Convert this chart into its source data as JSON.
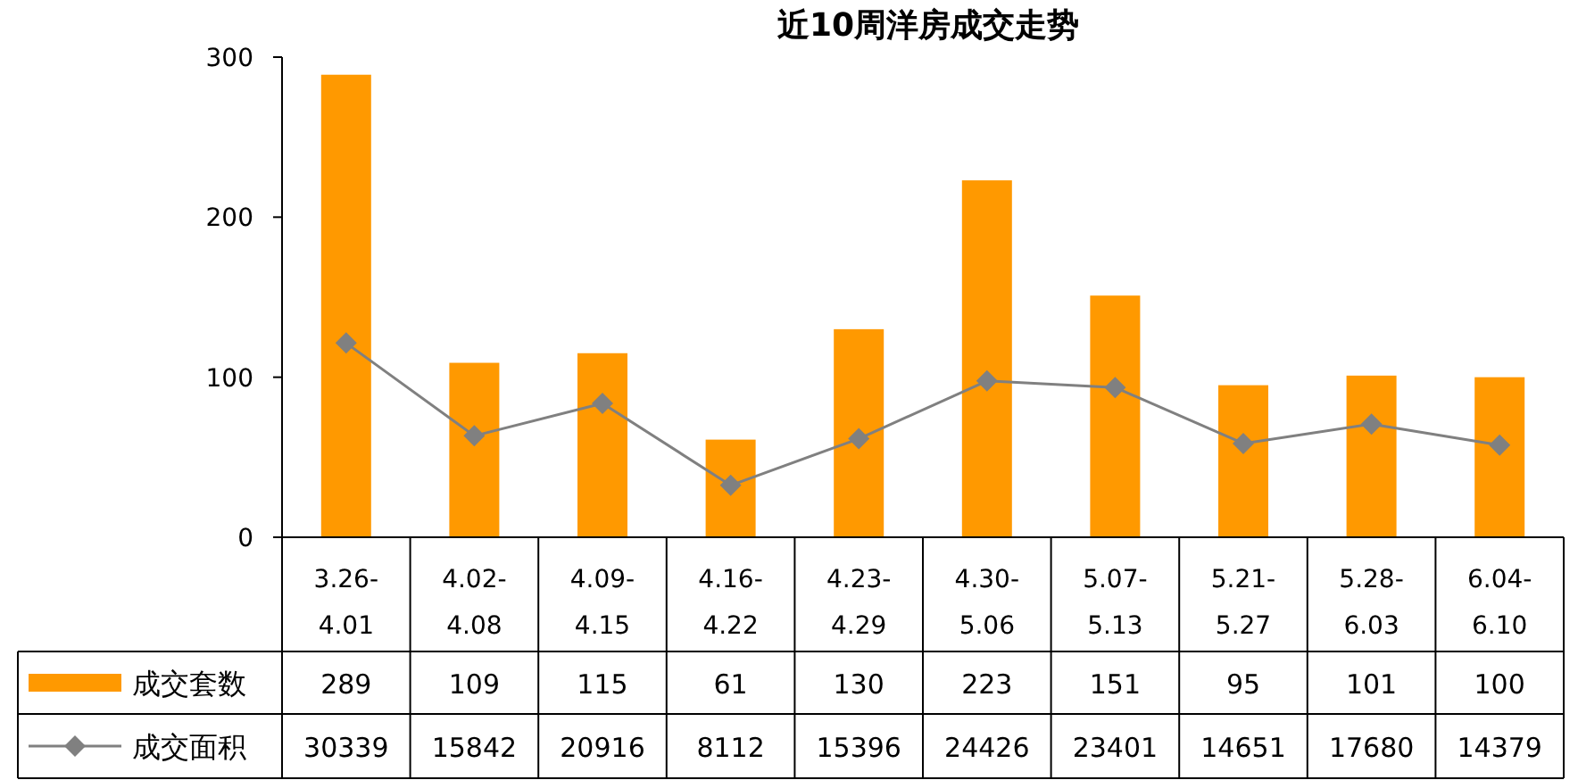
{
  "chart_data": {
    "type": "bar",
    "title": "近10周洋房成交走势",
    "categories": [
      "3.26-4.01",
      "4.02-4.08",
      "4.09-4.15",
      "4.16-4.22",
      "4.23-4.29",
      "4.30-5.06",
      "5.07-5.13",
      "5.21-5.27",
      "5.28-6.03",
      "6.04-6.10"
    ],
    "series": [
      {
        "name": "成交套数",
        "color": "#ff9900",
        "values": [
          289,
          109,
          115,
          61,
          130,
          223,
          151,
          95,
          101,
          100
        ]
      },
      {
        "name": "成交面积",
        "type": "line",
        "axis": "y2",
        "color": "#808080",
        "values": [
          30339,
          15842,
          20916,
          8112,
          15396,
          24426,
          23401,
          14651,
          17680,
          14379
        ]
      }
    ],
    "ylim": [
      0,
      300
    ],
    "yticks": [
      0,
      100,
      200,
      300
    ],
    "y2lim": [
      0,
      75000
    ],
    "data_labels": true,
    "legend": "bottom",
    "marker": "diamond",
    "grid": false
  }
}
